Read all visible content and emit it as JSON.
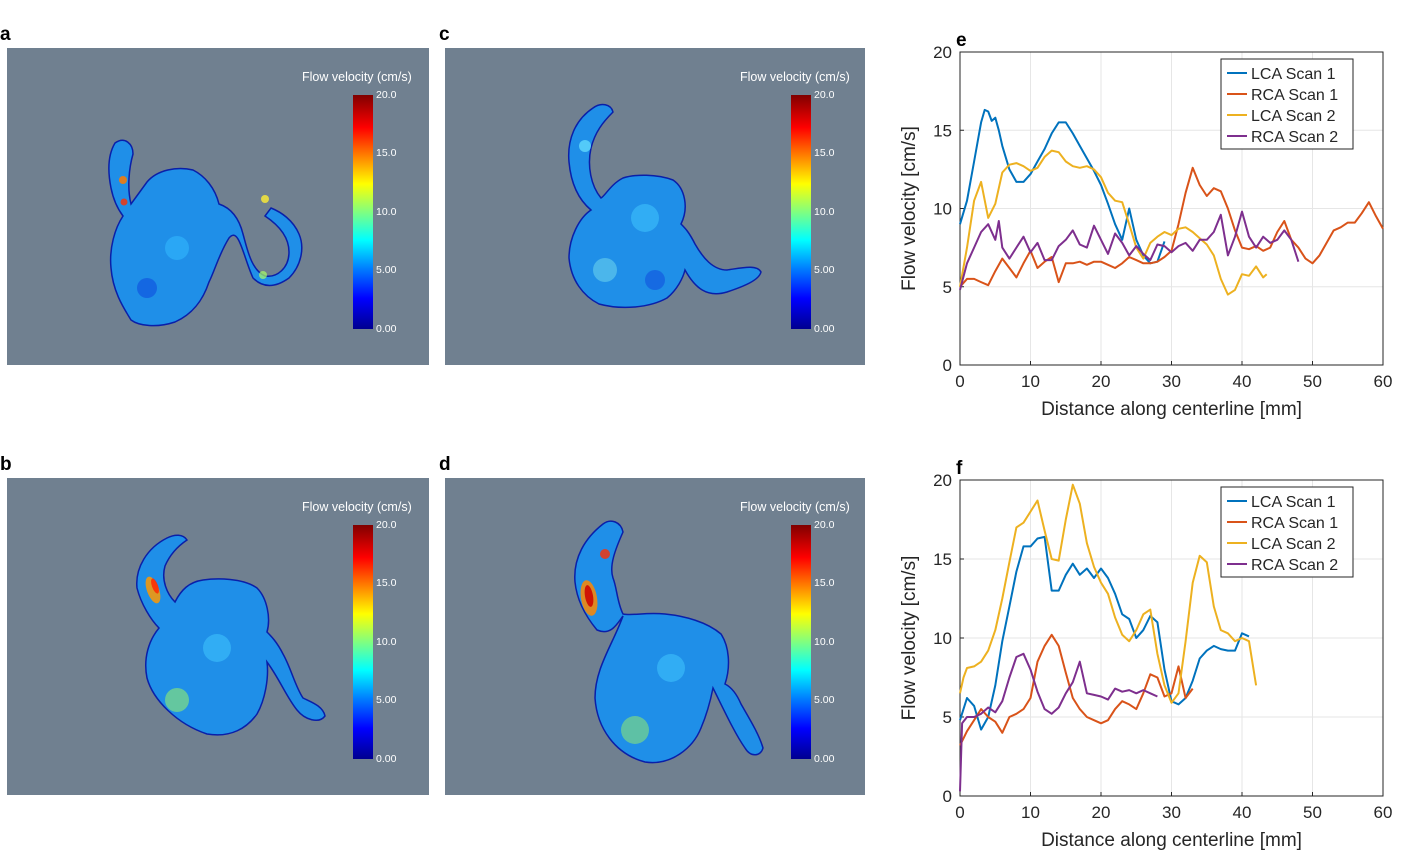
{
  "panel_labels": {
    "a": "a",
    "b": "b",
    "c": "c",
    "d": "d",
    "e": "e",
    "f": "f"
  },
  "colorbar": {
    "title": "Flow velocity (cm/s)",
    "ticks": [
      "20.0",
      "15.0",
      "10.0",
      "5.00",
      "0.00"
    ],
    "colormap": "jet",
    "range": [
      0,
      20
    ]
  },
  "colors": {
    "render_background": "#708090",
    "LCA Scan 1": "#0072BD",
    "RCA Scan 1": "#D95319",
    "LCA Scan 2": "#EDB120",
    "RCA Scan 2": "#7E2F8E"
  },
  "chart_data": [
    {
      "id": "e",
      "type": "line",
      "title": "",
      "xlabel": "Distance along centerline [mm]",
      "ylabel": "Flow velocity [cm/s]",
      "xlim": [
        0,
        60
      ],
      "ylim": [
        0,
        20
      ],
      "xticks": [
        0,
        10,
        20,
        30,
        40,
        50,
        60
      ],
      "yticks": [
        0,
        5,
        10,
        15,
        20
      ],
      "grid": true,
      "legend": "top-right",
      "series": [
        {
          "name": "LCA Scan 1",
          "x": [
            0,
            1,
            2,
            3,
            3.5,
            4,
            4.5,
            5,
            5.5,
            6,
            7,
            8,
            9,
            10,
            11,
            12,
            13,
            14,
            15,
            16,
            17,
            18,
            19,
            20,
            21,
            22,
            23,
            24,
            25,
            26,
            27,
            28,
            29
          ],
          "y": [
            9,
            10.5,
            13,
            15.5,
            16.3,
            16.2,
            15.6,
            15.8,
            15,
            14,
            12.5,
            11.7,
            11.7,
            12.2,
            13,
            13.8,
            14.8,
            15.5,
            15.5,
            14.8,
            14,
            13.2,
            12.4,
            11.5,
            10.3,
            9,
            8,
            10,
            8,
            7,
            6.5,
            6.6,
            7.9
          ]
        },
        {
          "name": "RCA Scan 1",
          "x": [
            0,
            1,
            2,
            3,
            4,
            5,
            6,
            7,
            8,
            9,
            10,
            11,
            12,
            13,
            14,
            15,
            16,
            17,
            18,
            19,
            20,
            21,
            22,
            23,
            24,
            25,
            26,
            27,
            28,
            29,
            30,
            31,
            32,
            33,
            34,
            35,
            36,
            37,
            38,
            39,
            40,
            41,
            42,
            43,
            44,
            45,
            46,
            47,
            48,
            49,
            50,
            51,
            52,
            53,
            54,
            55,
            56,
            57,
            58,
            59,
            60
          ],
          "y": [
            5,
            5.5,
            5.5,
            5.3,
            5.1,
            6,
            6.8,
            6.2,
            5.6,
            6.5,
            7.3,
            6.2,
            6.6,
            6.9,
            5.3,
            6.5,
            6.5,
            6.6,
            6.4,
            6.6,
            6.6,
            6.4,
            6.2,
            6.5,
            6.9,
            6.7,
            6.5,
            6.5,
            6.6,
            6.9,
            7.3,
            9,
            11,
            12.6,
            11.5,
            10.8,
            11.3,
            11.1,
            10,
            8.6,
            7.5,
            7.4,
            7.6,
            7.3,
            7.5,
            8.5,
            9.2,
            8,
            7.5,
            6.8,
            6.5,
            7,
            7.8,
            8.6,
            8.8,
            9.1,
            9.1,
            9.7,
            10.4,
            9.5,
            8.7
          ]
        },
        {
          "name": "LCA Scan 2",
          "x": [
            0,
            1,
            2,
            3,
            4,
            5,
            6,
            7,
            8,
            9,
            10,
            11,
            12,
            13,
            14,
            15,
            16,
            17,
            18,
            19,
            20,
            21,
            22,
            23,
            24,
            25,
            26,
            27,
            28,
            29,
            30,
            31,
            32,
            33,
            34,
            35,
            36,
            37,
            38,
            39,
            40,
            41,
            42,
            43,
            43.5
          ],
          "y": [
            5,
            7.5,
            10.5,
            11.7,
            9.4,
            10.3,
            12.3,
            12.8,
            12.9,
            12.7,
            12.4,
            12.6,
            13.3,
            13.7,
            13.6,
            13,
            12.7,
            12.6,
            12.7,
            12.5,
            12,
            11,
            10.5,
            10.4,
            9,
            7.5,
            6.8,
            7.8,
            8.2,
            8.5,
            8.3,
            8.7,
            8.8,
            8.5,
            8.1,
            7.7,
            7,
            5.5,
            4.5,
            4.8,
            5.8,
            5.7,
            6.3,
            5.6,
            5.8
          ]
        },
        {
          "name": "RCA Scan 2",
          "x": [
            0,
            1,
            2,
            3,
            4,
            5,
            5.5,
            6,
            7,
            8,
            9,
            10,
            11,
            12,
            13,
            14,
            15,
            16,
            17,
            18,
            19,
            20,
            21,
            22,
            23,
            24,
            25,
            26,
            27,
            28,
            29,
            30,
            31,
            32,
            33,
            34,
            35,
            36,
            37,
            38,
            39,
            40,
            41,
            42,
            43,
            44,
            45,
            46,
            47,
            48
          ],
          "y": [
            4.8,
            6.5,
            7.5,
            8.5,
            9,
            8,
            9.2,
            7.5,
            6.8,
            7.5,
            8.2,
            7.2,
            7.8,
            6.7,
            6.7,
            7.6,
            8,
            8.6,
            7.7,
            7.5,
            8.9,
            8,
            7.1,
            8.4,
            7.8,
            7,
            7.6,
            7.1,
            6.7,
            7.7,
            7.6,
            7.2,
            7.6,
            7.8,
            7.3,
            8,
            8,
            8.5,
            9.6,
            7,
            8.2,
            9.8,
            8.2,
            7.5,
            8.2,
            7.8,
            8,
            8.6,
            8,
            6.6
          ]
        }
      ]
    },
    {
      "id": "f",
      "type": "line",
      "title": "",
      "xlabel": "Distance along centerline [mm]",
      "ylabel": "Flow velocity [cm/s]",
      "xlim": [
        0,
        60
      ],
      "ylim": [
        0,
        20
      ],
      "xticks": [
        0,
        10,
        20,
        30,
        40,
        50,
        60
      ],
      "yticks": [
        0,
        5,
        10,
        15,
        20
      ],
      "grid": true,
      "legend": "top-right",
      "series": [
        {
          "name": "LCA Scan 1",
          "x": [
            0,
            0.5,
            1,
            2,
            3,
            4,
            5,
            6,
            7,
            8,
            9,
            10,
            11,
            12,
            13,
            14,
            15,
            16,
            17,
            18,
            19,
            20,
            21,
            22,
            23,
            24,
            25,
            26,
            27,
            28,
            29,
            30,
            31,
            32,
            33,
            34,
            35,
            36,
            37,
            38,
            39,
            40,
            41
          ],
          "y": [
            4.8,
            5.5,
            6.2,
            5.7,
            4.2,
            5,
            7,
            9.8,
            12,
            14.2,
            15.8,
            15.8,
            16.3,
            16.4,
            13,
            13,
            14,
            14.7,
            14,
            14.4,
            13.8,
            14.4,
            13.8,
            12.8,
            11.5,
            11.2,
            10,
            10.5,
            11.4,
            11,
            8,
            6,
            5.8,
            6.2,
            7.3,
            8.7,
            9.2,
            9.5,
            9.3,
            9.2,
            9.2,
            10.3,
            10.1
          ]
        },
        {
          "name": "RCA Scan 1",
          "x": [
            0,
            1,
            2,
            3,
            4,
            5,
            6,
            7,
            8,
            9,
            10,
            11,
            12,
            13,
            14,
            15,
            16,
            17,
            18,
            19,
            20,
            21,
            22,
            23,
            24,
            25,
            26,
            27,
            28,
            29,
            30,
            31,
            32,
            33
          ],
          "y": [
            3.2,
            4.1,
            4.8,
            5.5,
            5,
            4.7,
            4,
            5,
            5.2,
            5.5,
            6.2,
            8.5,
            9.5,
            10.2,
            9.5,
            7.8,
            6.2,
            5.5,
            5,
            4.8,
            4.6,
            4.8,
            5.5,
            6,
            5.8,
            5.5,
            6.5,
            7.7,
            7.5,
            6.3,
            6.5,
            8.2,
            6.2,
            6.8
          ]
        },
        {
          "name": "LCA Scan 2",
          "x": [
            0,
            0.5,
            1,
            2,
            3,
            4,
            5,
            6,
            7,
            8,
            9,
            10,
            11,
            12,
            13,
            14,
            15,
            16,
            17,
            18,
            19,
            20,
            21,
            22,
            23,
            24,
            25,
            26,
            27,
            28,
            29,
            30,
            31,
            32,
            33,
            34,
            35,
            36,
            37,
            38,
            39,
            40,
            41,
            42
          ],
          "y": [
            6.5,
            7.5,
            8.1,
            8.2,
            8.5,
            9.2,
            10.5,
            12.5,
            14.8,
            17,
            17.3,
            18,
            18.7,
            16.8,
            15,
            14.9,
            17.5,
            19.7,
            18.5,
            16,
            14.5,
            13.5,
            12.8,
            11.3,
            10.2,
            9.8,
            10.5,
            11.5,
            11.8,
            9,
            7,
            5.9,
            6.5,
            9.8,
            13.5,
            15.2,
            14.8,
            12,
            10.5,
            10.3,
            9.8,
            10,
            9.8,
            7
          ]
        },
        {
          "name": "RCA Scan 2",
          "x": [
            0,
            0.3,
            1,
            2,
            3,
            4,
            5,
            6,
            7,
            8,
            9,
            10,
            11,
            12,
            13,
            14,
            15,
            16,
            17,
            18,
            19,
            20,
            21,
            22,
            23,
            24,
            25,
            26,
            27,
            28
          ],
          "y": [
            0.3,
            4.6,
            5,
            5,
            5.2,
            5.6,
            5.3,
            6,
            7.5,
            8.8,
            9,
            8,
            6.6,
            5.5,
            5.2,
            5.6,
            6.5,
            7.2,
            8.5,
            6.5,
            6.4,
            6.3,
            6.1,
            6.8,
            6.6,
            6.7,
            6.5,
            6.7,
            6.5,
            6.3
          ]
        }
      ]
    }
  ]
}
